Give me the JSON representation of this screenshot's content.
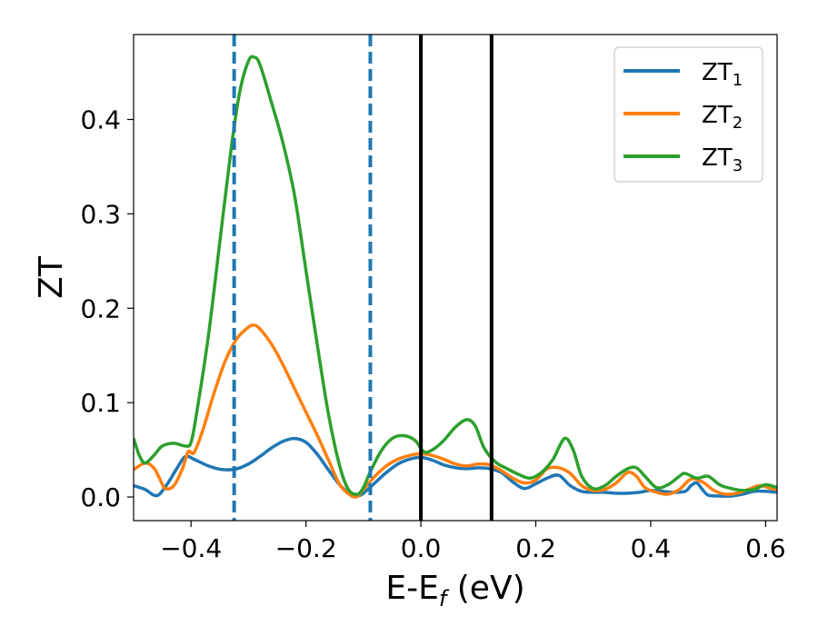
{
  "chart_data": {
    "type": "line",
    "xlabel": "E-E",
    "xlabel_sub": "f",
    "xlabel_unit": " (eV)",
    "ylabel": "ZT",
    "xlim": [
      -0.5,
      0.62
    ],
    "ylim": [
      -0.025,
      0.49
    ],
    "grid": false,
    "legend_position": "top-right",
    "x_ticks": [
      -0.4,
      -0.2,
      0.0,
      0.2,
      0.4,
      0.6
    ],
    "x_tick_labels": [
      "−0.4",
      "−0.2",
      "0.0",
      "0.2",
      "0.4",
      "0.6"
    ],
    "y_ticks": [
      0.0,
      0.1,
      0.2,
      0.3,
      0.4
    ],
    "y_tick_labels": [
      "0.0",
      "0.1",
      "0.2",
      "0.3",
      "0.4"
    ],
    "vertical_lines": [
      {
        "x": -0.325,
        "style": "dashed",
        "color": "#1f77b4"
      },
      {
        "x": -0.088,
        "style": "dashed",
        "color": "#1f77b4"
      },
      {
        "x": 0.0,
        "style": "solid",
        "color": "#000000"
      },
      {
        "x": 0.123,
        "style": "solid",
        "color": "#000000"
      }
    ],
    "series": [
      {
        "label": "ZT",
        "label_sub": "1",
        "color": "#1f77b4",
        "points": [
          [
            -0.5,
            0.012
          ],
          [
            -0.48,
            0.008
          ],
          [
            -0.465,
            0.002
          ],
          [
            -0.455,
            0.003
          ],
          [
            -0.44,
            0.015
          ],
          [
            -0.425,
            0.03
          ],
          [
            -0.41,
            0.043
          ],
          [
            -0.395,
            0.04
          ],
          [
            -0.37,
            0.033
          ],
          [
            -0.345,
            0.029
          ],
          [
            -0.32,
            0.03
          ],
          [
            -0.3,
            0.035
          ],
          [
            -0.28,
            0.043
          ],
          [
            -0.26,
            0.052
          ],
          [
            -0.24,
            0.059
          ],
          [
            -0.22,
            0.062
          ],
          [
            -0.2,
            0.058
          ],
          [
            -0.18,
            0.045
          ],
          [
            -0.16,
            0.028
          ],
          [
            -0.14,
            0.012
          ],
          [
            -0.12,
            0.002
          ],
          [
            -0.11,
            0.001
          ],
          [
            -0.1,
            0.004
          ],
          [
            -0.08,
            0.015
          ],
          [
            -0.06,
            0.026
          ],
          [
            -0.04,
            0.035
          ],
          [
            -0.02,
            0.04
          ],
          [
            0.0,
            0.042
          ],
          [
            0.02,
            0.039
          ],
          [
            0.04,
            0.034
          ],
          [
            0.06,
            0.031
          ],
          [
            0.08,
            0.03
          ],
          [
            0.1,
            0.031
          ],
          [
            0.12,
            0.03
          ],
          [
            0.14,
            0.026
          ],
          [
            0.16,
            0.016
          ],
          [
            0.18,
            0.009
          ],
          [
            0.2,
            0.014
          ],
          [
            0.22,
            0.02
          ],
          [
            0.24,
            0.023
          ],
          [
            0.26,
            0.012
          ],
          [
            0.28,
            0.006
          ],
          [
            0.3,
            0.005
          ],
          [
            0.32,
            0.005
          ],
          [
            0.34,
            0.004
          ],
          [
            0.36,
            0.004
          ],
          [
            0.38,
            0.005
          ],
          [
            0.4,
            0.007
          ],
          [
            0.42,
            0.006
          ],
          [
            0.44,
            0.005
          ],
          [
            0.46,
            0.006
          ],
          [
            0.47,
            0.012
          ],
          [
            0.48,
            0.015
          ],
          [
            0.49,
            0.008
          ],
          [
            0.5,
            0.002
          ],
          [
            0.52,
            0.001
          ],
          [
            0.54,
            0.001
          ],
          [
            0.56,
            0.003
          ],
          [
            0.58,
            0.006
          ],
          [
            0.6,
            0.006
          ],
          [
            0.62,
            0.005
          ]
        ]
      },
      {
        "label": "ZT",
        "label_sub": "2",
        "color": "#ff7f0e",
        "points": [
          [
            -0.5,
            0.029
          ],
          [
            -0.48,
            0.036
          ],
          [
            -0.465,
            0.031
          ],
          [
            -0.455,
            0.02
          ],
          [
            -0.445,
            0.009
          ],
          [
            -0.43,
            0.012
          ],
          [
            -0.415,
            0.03
          ],
          [
            -0.405,
            0.048
          ],
          [
            -0.395,
            0.047
          ],
          [
            -0.38,
            0.07
          ],
          [
            -0.36,
            0.11
          ],
          [
            -0.34,
            0.145
          ],
          [
            -0.32,
            0.168
          ],
          [
            -0.3,
            0.18
          ],
          [
            -0.29,
            0.182
          ],
          [
            -0.28,
            0.178
          ],
          [
            -0.26,
            0.162
          ],
          [
            -0.24,
            0.14
          ],
          [
            -0.22,
            0.115
          ],
          [
            -0.2,
            0.09
          ],
          [
            -0.18,
            0.065
          ],
          [
            -0.16,
            0.038
          ],
          [
            -0.14,
            0.012
          ],
          [
            -0.12,
            0.001
          ],
          [
            -0.11,
            0.001
          ],
          [
            -0.1,
            0.008
          ],
          [
            -0.08,
            0.022
          ],
          [
            -0.06,
            0.033
          ],
          [
            -0.04,
            0.04
          ],
          [
            -0.02,
            0.044
          ],
          [
            0.0,
            0.046
          ],
          [
            0.02,
            0.044
          ],
          [
            0.04,
            0.04
          ],
          [
            0.06,
            0.035
          ],
          [
            0.08,
            0.033
          ],
          [
            0.1,
            0.035
          ],
          [
            0.12,
            0.034
          ],
          [
            0.14,
            0.028
          ],
          [
            0.16,
            0.02
          ],
          [
            0.18,
            0.015
          ],
          [
            0.2,
            0.018
          ],
          [
            0.22,
            0.03
          ],
          [
            0.24,
            0.031
          ],
          [
            0.26,
            0.025
          ],
          [
            0.28,
            0.012
          ],
          [
            0.3,
            0.007
          ],
          [
            0.32,
            0.008
          ],
          [
            0.34,
            0.015
          ],
          [
            0.36,
            0.026
          ],
          [
            0.375,
            0.022
          ],
          [
            0.39,
            0.01
          ],
          [
            0.41,
            0.005
          ],
          [
            0.43,
            0.003
          ],
          [
            0.45,
            0.008
          ],
          [
            0.47,
            0.019
          ],
          [
            0.49,
            0.016
          ],
          [
            0.51,
            0.007
          ],
          [
            0.53,
            0.003
          ],
          [
            0.55,
            0.004
          ],
          [
            0.57,
            0.008
          ],
          [
            0.59,
            0.012
          ],
          [
            0.61,
            0.009
          ],
          [
            0.62,
            0.008
          ]
        ]
      },
      {
        "label": "ZT",
        "label_sub": "3",
        "color": "#2ca02c",
        "points": [
          [
            -0.5,
            0.062
          ],
          [
            -0.49,
            0.044
          ],
          [
            -0.48,
            0.036
          ],
          [
            -0.465,
            0.044
          ],
          [
            -0.45,
            0.054
          ],
          [
            -0.43,
            0.057
          ],
          [
            -0.41,
            0.054
          ],
          [
            -0.4,
            0.058
          ],
          [
            -0.39,
            0.09
          ],
          [
            -0.37,
            0.17
          ],
          [
            -0.35,
            0.27
          ],
          [
            -0.33,
            0.37
          ],
          [
            -0.315,
            0.43
          ],
          [
            -0.3,
            0.462
          ],
          [
            -0.29,
            0.466
          ],
          [
            -0.28,
            0.458
          ],
          [
            -0.26,
            0.418
          ],
          [
            -0.24,
            0.375
          ],
          [
            -0.22,
            0.32
          ],
          [
            -0.2,
            0.24
          ],
          [
            -0.18,
            0.16
          ],
          [
            -0.16,
            0.085
          ],
          [
            -0.14,
            0.03
          ],
          [
            -0.125,
            0.007
          ],
          [
            -0.11,
            0.003
          ],
          [
            -0.1,
            0.01
          ],
          [
            -0.09,
            0.024
          ],
          [
            -0.07,
            0.048
          ],
          [
            -0.05,
            0.062
          ],
          [
            -0.03,
            0.065
          ],
          [
            -0.01,
            0.06
          ],
          [
            0.005,
            0.048
          ],
          [
            0.02,
            0.05
          ],
          [
            0.04,
            0.06
          ],
          [
            0.06,
            0.074
          ],
          [
            0.08,
            0.082
          ],
          [
            0.095,
            0.075
          ],
          [
            0.11,
            0.052
          ],
          [
            0.13,
            0.037
          ],
          [
            0.15,
            0.03
          ],
          [
            0.17,
            0.024
          ],
          [
            0.19,
            0.02
          ],
          [
            0.21,
            0.026
          ],
          [
            0.23,
            0.04
          ],
          [
            0.25,
            0.062
          ],
          [
            0.265,
            0.05
          ],
          [
            0.28,
            0.022
          ],
          [
            0.3,
            0.009
          ],
          [
            0.32,
            0.012
          ],
          [
            0.34,
            0.022
          ],
          [
            0.36,
            0.03
          ],
          [
            0.375,
            0.031
          ],
          [
            0.39,
            0.022
          ],
          [
            0.41,
            0.01
          ],
          [
            0.43,
            0.013
          ],
          [
            0.45,
            0.022
          ],
          [
            0.46,
            0.025
          ],
          [
            0.48,
            0.02
          ],
          [
            0.5,
            0.022
          ],
          [
            0.52,
            0.013
          ],
          [
            0.54,
            0.009
          ],
          [
            0.56,
            0.007
          ],
          [
            0.58,
            0.008
          ],
          [
            0.6,
            0.013
          ],
          [
            0.62,
            0.01
          ]
        ]
      }
    ]
  }
}
